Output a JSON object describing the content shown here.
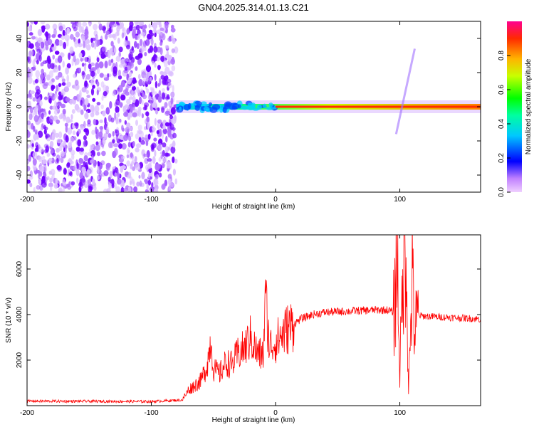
{
  "title": "GN04.2025.314.01.13.C21",
  "colors": {
    "signal": "#ff0000",
    "noise": "#7a00ff",
    "axis": "#000000",
    "background": "#ffffff"
  },
  "chart_data": [
    {
      "type": "heatmap",
      "name": "spectrogram",
      "xlabel": "Height of straight line (km)",
      "ylabel": "Frequency (Hz)",
      "xlim": [
        -200,
        165
      ],
      "ylim": [
        -50,
        50
      ],
      "xticks": [
        -200,
        -100,
        0,
        100
      ],
      "yticks": [
        -40,
        -20,
        0,
        20,
        40
      ],
      "colorbar": {
        "label": "Normalized spectral amplitude",
        "range": [
          0,
          1
        ],
        "ticks": [
          0.0,
          0.2,
          0.4,
          0.6,
          0.8
        ],
        "tick_labels": [
          "0.0",
          "0.2",
          "0.4",
          "0.6",
          "0.8"
        ]
      },
      "regions": [
        {
          "description": "noise",
          "x_range": [
            -200,
            -80
          ],
          "y_range": [
            -50,
            50
          ]
        },
        {
          "description": "doppler trace",
          "x_range": [
            -80,
            165
          ],
          "center_frequency": 0
        },
        {
          "description": "feature",
          "x_range": [
            97,
            112
          ],
          "y_range": [
            -16,
            34
          ]
        }
      ]
    },
    {
      "type": "line",
      "name": "snr",
      "xlabel": "Height of straight line (km)",
      "ylabel": "SNR (10 * v/v)",
      "xlim": [
        -200,
        165
      ],
      "ylim": [
        0,
        7500
      ],
      "xticks": [
        -200,
        -100,
        0,
        100
      ],
      "yticks": [
        2000,
        4000,
        6000
      ],
      "series": [
        {
          "name": "SNR",
          "color": "#ff0000",
          "x": [
            -200,
            -100,
            -75,
            -70,
            -60,
            -55,
            -52,
            -50,
            -45,
            -40,
            -35,
            -30,
            -25,
            -20,
            -15,
            -10,
            -8,
            -5,
            0,
            10,
            20,
            30,
            40,
            60,
            80,
            90,
            95,
            98,
            100,
            103,
            105,
            107,
            110,
            112,
            115,
            130,
            150,
            165
          ],
          "values": [
            200,
            180,
            250,
            700,
            1100,
            1800,
            2900,
            1600,
            1400,
            1900,
            1800,
            2300,
            2500,
            3000,
            2300,
            2200,
            4800,
            2600,
            2800,
            3400,
            3800,
            4000,
            4100,
            4150,
            4200,
            4200,
            4100,
            6500,
            1500,
            6300,
            7400,
            700,
            5500,
            3200,
            3950,
            3900,
            3850,
            3800
          ]
        }
      ]
    }
  ]
}
